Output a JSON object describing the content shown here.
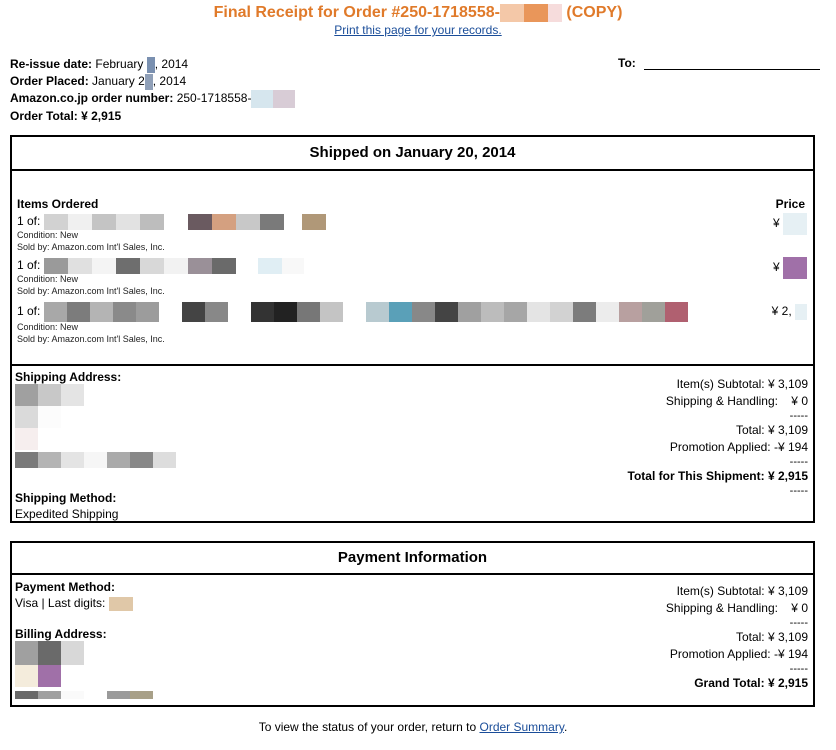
{
  "header": {
    "title_prefix": "Final Receipt for Order #250-1718558-",
    "title_suffix": " (COPY)",
    "print_link": "Print this page for your records."
  },
  "meta": {
    "reissue_label": "Re-issue date:",
    "reissue_value_a": "February ",
    "reissue_value_b": ", 2014",
    "placed_label": "Order Placed:",
    "placed_value_a": "January 2",
    "placed_value_b": ", 2014",
    "order_number_label": "Amazon.co.jp order number:",
    "order_number_value": "250-1718558-",
    "order_total_label": "Order Total:",
    "order_total_value": "¥ 2,915",
    "to_label": "To:"
  },
  "shipment": {
    "title": "Shipped on January 20, 2014",
    "items_header": "Items Ordered",
    "price_header": "Price",
    "items": [
      {
        "qty": "1 of: ",
        "condition": "Condition: New",
        "seller": "Sold by: Amazon.com Int'l Sales, Inc.",
        "price": "¥"
      },
      {
        "qty": "1 of: ",
        "condition": "Condition: New",
        "seller": "Sold by: Amazon.com Int'l Sales, Inc.",
        "price": "¥"
      },
      {
        "qty": "1 of: ",
        "condition": "Condition: New",
        "seller": "Sold by: Amazon.com Int'l Sales, Inc.",
        "price": "¥ 2,"
      }
    ],
    "address_label": "Shipping Address:",
    "method_label": "Shipping Method:",
    "method_value": "Expedited Shipping",
    "totals": {
      "subtotal": "Item(s) Subtotal: ¥ 3,109",
      "shipping": "Shipping & Handling:    ¥ 0",
      "dash": "-----",
      "total": "Total: ¥ 3,109",
      "promotion": "Promotion Applied: -¥ 194",
      "shipment_total": "Total for This Shipment: ¥ 2,915"
    }
  },
  "payment": {
    "title": "Payment Information",
    "method_label": "Payment Method:",
    "method_value": "Visa | Last digits: ",
    "billing_label": "Billing Address:",
    "totals": {
      "subtotal": "Item(s) Subtotal: ¥ 3,109",
      "shipping": "Shipping & Handling:    ¥ 0",
      "dash": "-----",
      "total": "Total: ¥ 3,109",
      "promotion": "Promotion Applied: -¥ 194",
      "grand_total": "Grand Total: ¥ 2,915"
    }
  },
  "footer": {
    "text": "To view the status of your order, return to ",
    "link": "Order Summary",
    "end": "."
  },
  "colors": {
    "title": "#e07a2a",
    "link": "#1a4d99",
    "redact_palette": [
      "#b8b8b8",
      "#e8e8e8",
      "#9a9a9a",
      "#6a5a60",
      "#d4a080",
      "#b09878",
      "#333333",
      "#5aa0b8",
      "#b06070",
      "#a070a8",
      "#e0c8a8"
    ]
  }
}
